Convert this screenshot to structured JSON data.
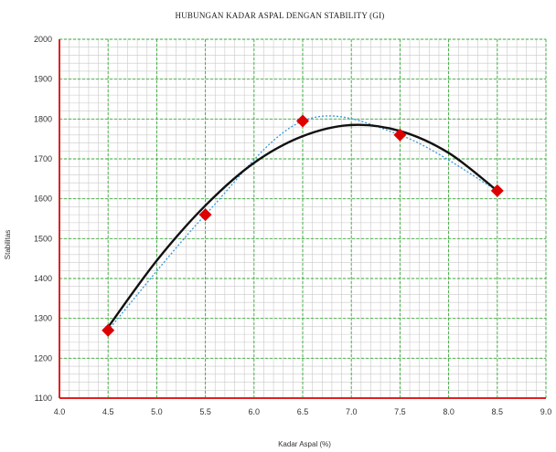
{
  "chart_data": {
    "type": "scatter",
    "title": "HUBUNGAN KADAR ASPAL DENGAN STABILITY  (GI)",
    "xlabel": "Kadar Aspal (%)",
    "ylabel": "Stabilitas",
    "xlim": [
      4.0,
      9.0
    ],
    "ylim": [
      1100,
      2000
    ],
    "x_ticks": [
      "4.0",
      "4.5",
      "5.0",
      "5.5",
      "6.0",
      "6.5",
      "7.0",
      "7.5",
      "8.0",
      "8.5",
      "9.0"
    ],
    "y_ticks": [
      "1100",
      "1200",
      "1300",
      "1400",
      "1500",
      "1600",
      "1700",
      "1800",
      "1900",
      "2000"
    ],
    "grid": true,
    "series": [
      {
        "type": "scatter",
        "marker": "diamond",
        "color": "#dd0000",
        "x": [
          4.5,
          5.5,
          6.5,
          7.5,
          8.5
        ],
        "y": [
          1270,
          1560,
          1795,
          1760,
          1620
        ]
      },
      {
        "type": "line",
        "style": "dotted",
        "color": "#3399dd",
        "x": [
          4.5,
          5.5,
          6.5,
          7.5,
          8.5
        ],
        "y": [
          1270,
          1560,
          1795,
          1760,
          1620
        ]
      },
      {
        "type": "line",
        "style": "solid",
        "color": "#111111",
        "fit": "polynomial-2",
        "x": [
          4.5,
          5.0,
          5.5,
          6.0,
          6.5,
          7.0,
          7.5,
          8.0,
          8.5
        ],
        "y": [
          1278,
          1445,
          1583,
          1690,
          1757,
          1785,
          1770,
          1715,
          1620
        ]
      }
    ]
  }
}
